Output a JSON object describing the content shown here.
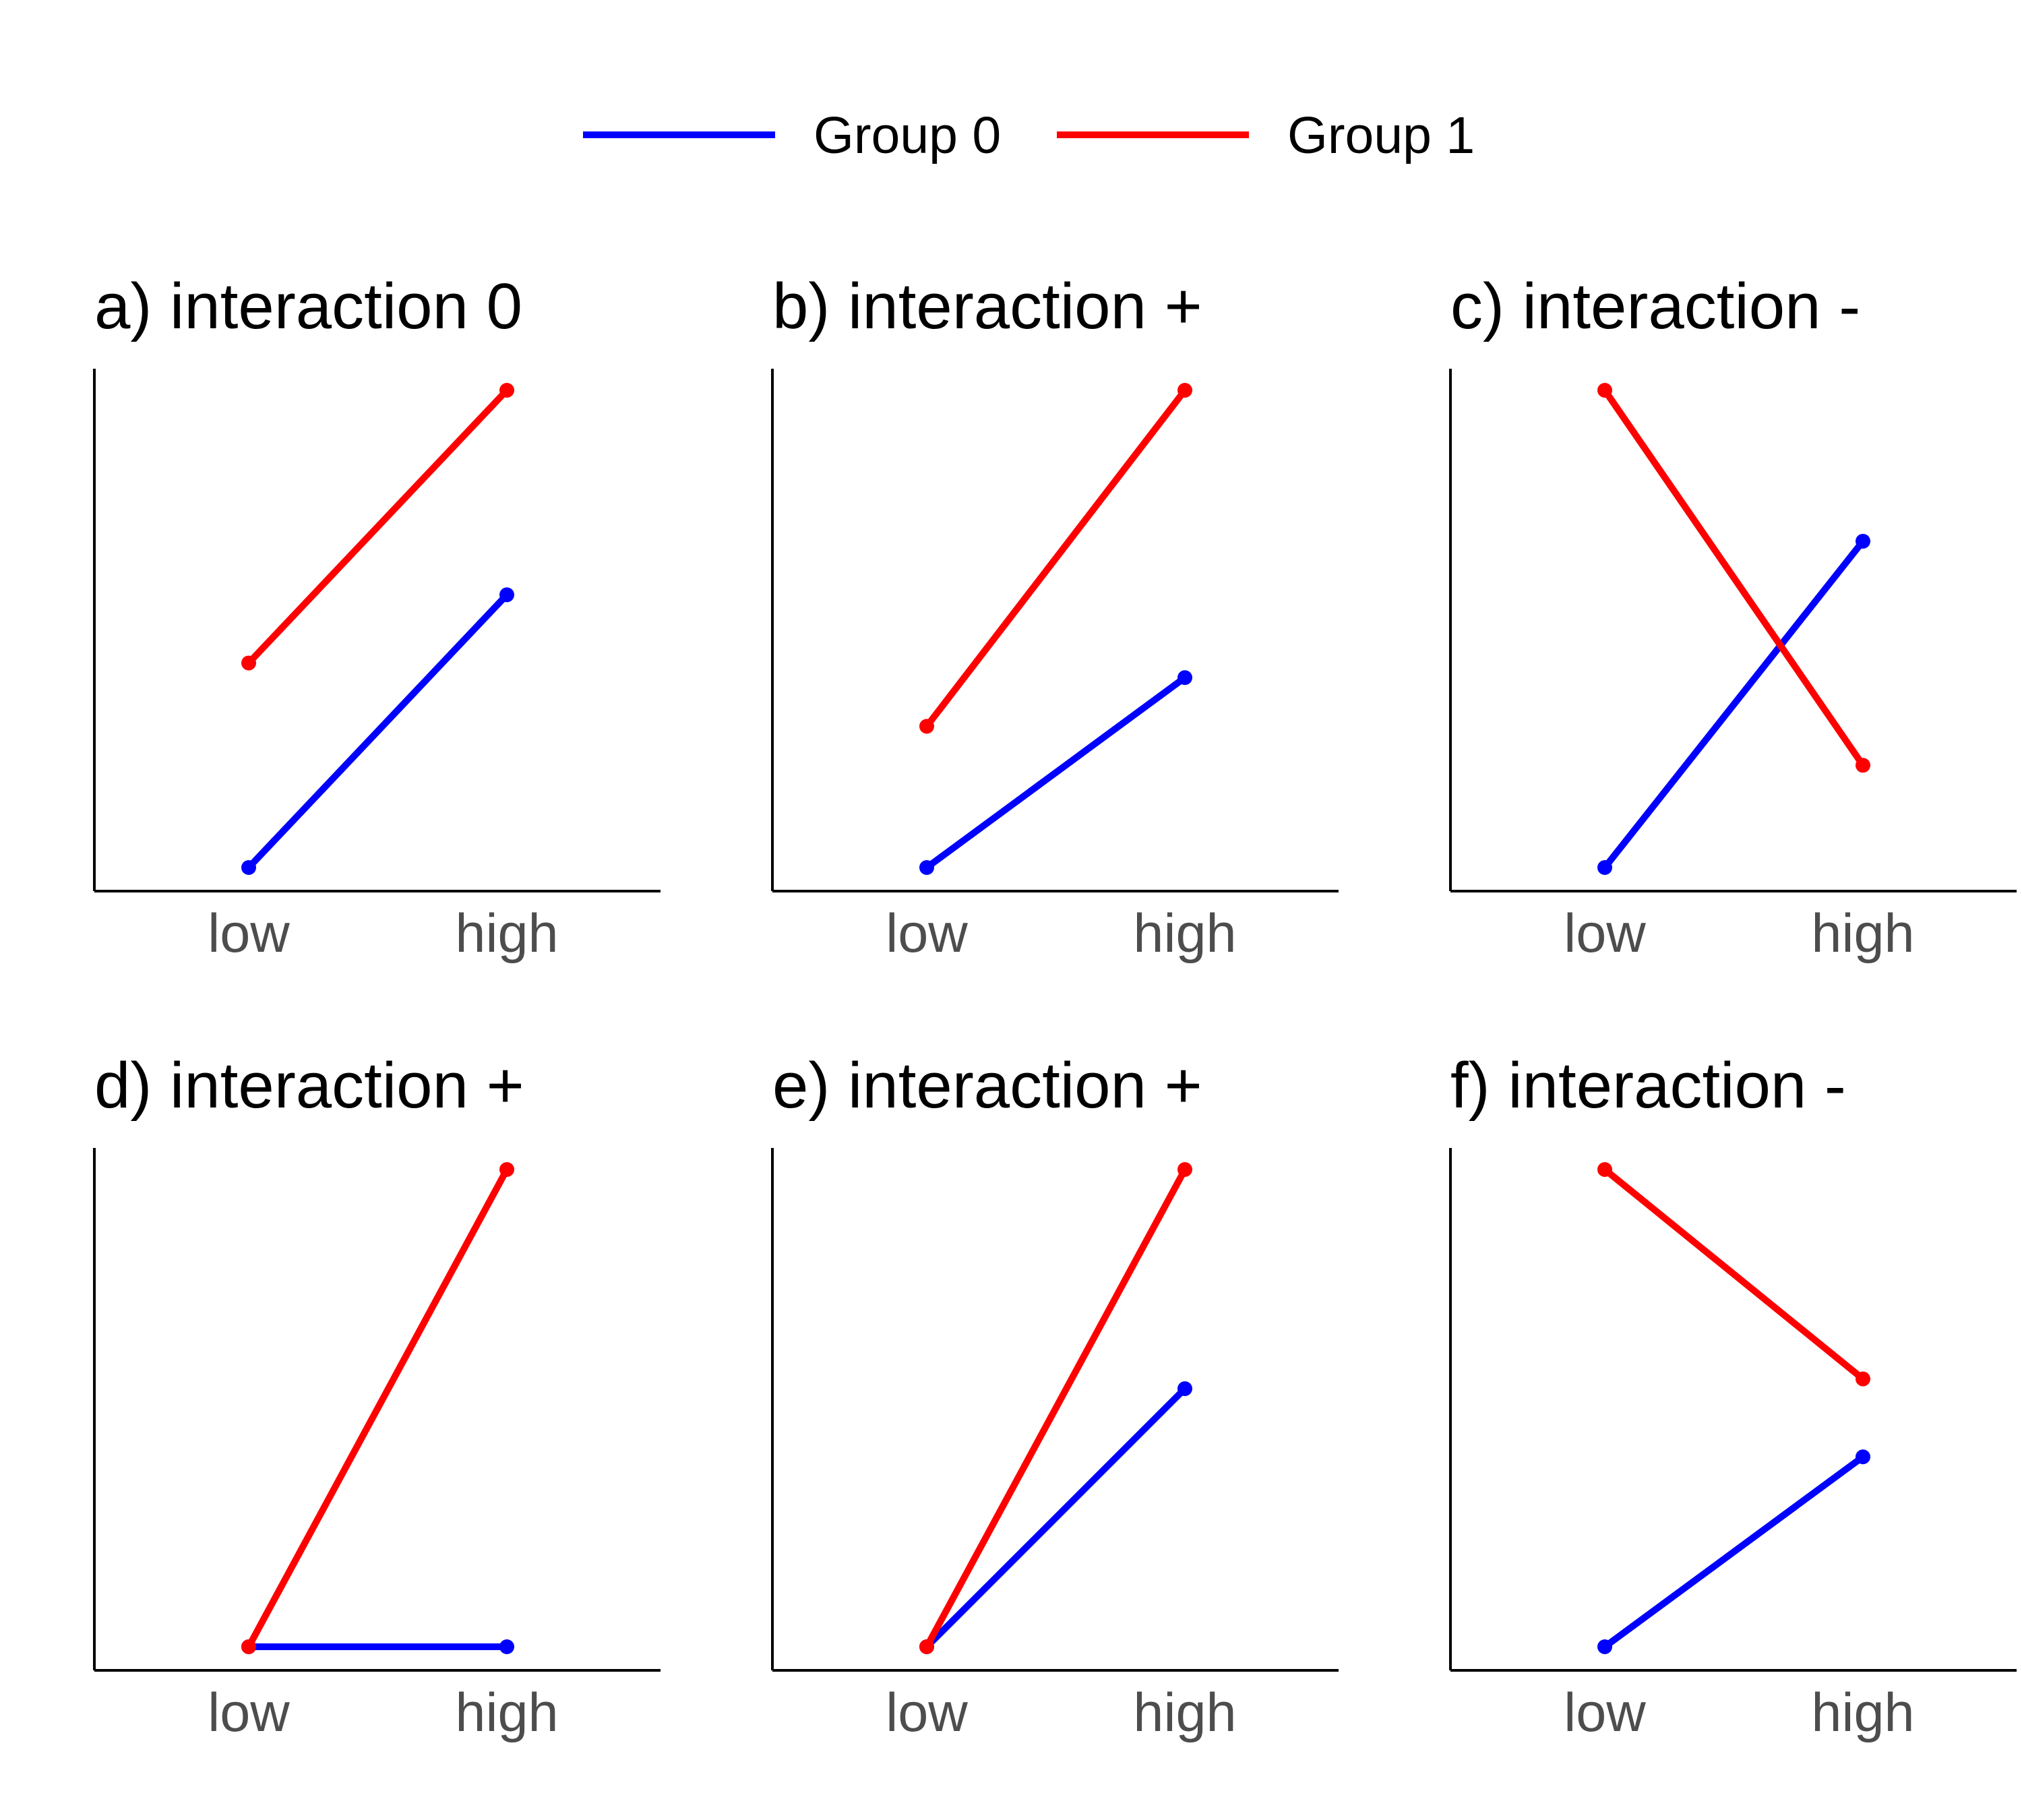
{
  "legend": {
    "items": [
      {
        "label": "Group 0",
        "color": "#0000ff"
      },
      {
        "label": "Group 1",
        "color": "#ff0000"
      }
    ]
  },
  "chart_data": [
    {
      "type": "line",
      "title": "a) interaction 0",
      "categories": [
        "low",
        "high"
      ],
      "series": [
        {
          "name": "Group 0",
          "color": "#0000ff",
          "values": [
            0,
            5.6
          ]
        },
        {
          "name": "Group 1",
          "color": "#ff0000",
          "values": [
            4.2,
            9.8
          ]
        }
      ]
    },
    {
      "type": "line",
      "title": "b) interaction +",
      "categories": [
        "low",
        "high"
      ],
      "series": [
        {
          "name": "Group 0",
          "color": "#0000ff",
          "values": [
            0,
            3.9
          ]
        },
        {
          "name": "Group 1",
          "color": "#ff0000",
          "values": [
            2.9,
            9.8
          ]
        }
      ]
    },
    {
      "type": "line",
      "title": "c) interaction -",
      "categories": [
        "low",
        "high"
      ],
      "series": [
        {
          "name": "Group 0",
          "color": "#0000ff",
          "values": [
            0,
            6.7
          ]
        },
        {
          "name": "Group 1",
          "color": "#ff0000",
          "values": [
            9.8,
            2.1
          ]
        }
      ]
    },
    {
      "type": "line",
      "title": "d) interaction +",
      "categories": [
        "low",
        "high"
      ],
      "series": [
        {
          "name": "Group 0",
          "color": "#0000ff",
          "values": [
            0,
            0
          ]
        },
        {
          "name": "Group 1",
          "color": "#ff0000",
          "values": [
            0,
            9.8
          ]
        }
      ]
    },
    {
      "type": "line",
      "title": "e) interaction +",
      "categories": [
        "low",
        "high"
      ],
      "series": [
        {
          "name": "Group 0",
          "color": "#0000ff",
          "values": [
            0,
            5.3
          ]
        },
        {
          "name": "Group 1",
          "color": "#ff0000",
          "values": [
            0,
            9.8
          ]
        }
      ]
    },
    {
      "type": "line",
      "title": "f) interaction -",
      "categories": [
        "low",
        "high"
      ],
      "series": [
        {
          "name": "Group 0",
          "color": "#0000ff",
          "values": [
            0,
            3.9
          ]
        },
        {
          "name": "Group 1",
          "color": "#ff0000",
          "values": [
            9.8,
            5.5
          ]
        }
      ]
    }
  ]
}
